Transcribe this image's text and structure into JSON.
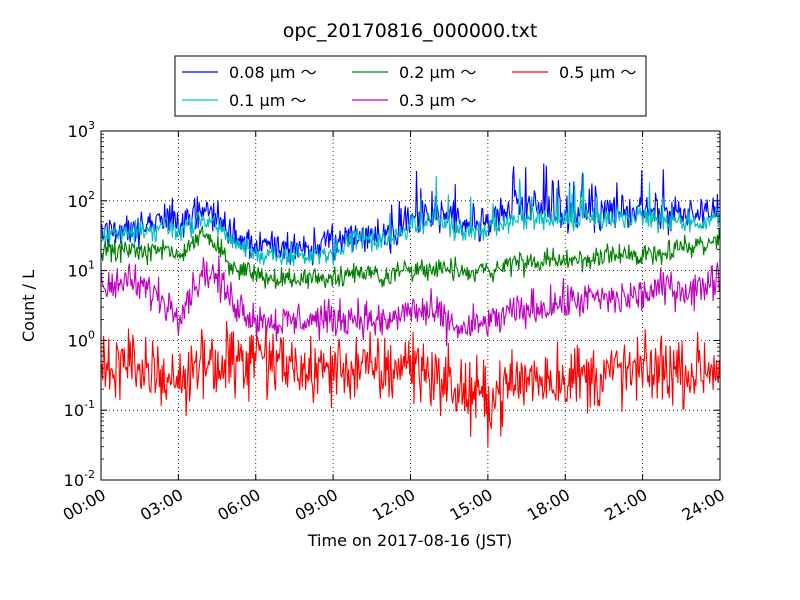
{
  "chart_data": {
    "type": "line",
    "title": "opc_20170816_000000.txt",
    "xlabel": "Time on 2017-08-16 (JST)",
    "ylabel": "Count / L",
    "yscale": "log",
    "ylim": [
      0.01,
      1000
    ],
    "xlim": [
      0,
      24
    ],
    "grid": true,
    "legend_position": "top",
    "xticks": [
      0,
      3,
      6,
      9,
      12,
      15,
      18,
      21,
      24
    ],
    "xtick_labels": [
      "00:00",
      "03:00",
      "06:00",
      "09:00",
      "12:00",
      "15:00",
      "18:00",
      "21:00",
      "24:00"
    ],
    "yticks": [
      {
        "value": 0.01,
        "base": "10",
        "exp": "-2"
      },
      {
        "value": 0.1,
        "base": "10",
        "exp": "-1"
      },
      {
        "value": 1,
        "base": "10",
        "exp": "0"
      },
      {
        "value": 10,
        "base": "10",
        "exp": "1"
      },
      {
        "value": 100,
        "base": "10",
        "exp": "2"
      },
      {
        "value": 1000,
        "base": "10",
        "exp": "3"
      }
    ],
    "x": [
      0,
      1,
      2,
      2.5,
      3,
      3.5,
      4,
      4.5,
      5,
      6,
      7,
      8,
      9,
      10,
      11,
      12,
      13,
      14,
      15,
      16,
      17,
      18,
      19,
      20,
      21,
      22,
      23,
      24
    ],
    "series": [
      {
        "name": "0.08 μm ～",
        "color": "#0000ff",
        "noise": 0.12,
        "values": [
          35,
          42,
          45,
          60,
          50,
          58,
          72,
          60,
          35,
          22,
          21,
          22,
          24,
          33,
          32,
          55,
          70,
          45,
          48,
          85,
          75,
          70,
          68,
          72,
          70,
          70,
          60,
          75
        ]
      },
      {
        "name": "0.1 μm ～",
        "color": "#00bfbf",
        "noise": 0.08,
        "values": [
          30,
          36,
          37,
          45,
          38,
          45,
          55,
          45,
          28,
          17,
          16,
          17,
          19,
          28,
          27,
          45,
          55,
          35,
          40,
          55,
          55,
          55,
          53,
          57,
          55,
          53,
          45,
          55
        ]
      },
      {
        "name": "0.2 μm ～",
        "color": "#008000",
        "noise": 0.08,
        "values": [
          18,
          20,
          17,
          22,
          15,
          25,
          35,
          22,
          12,
          9,
          7.5,
          7.5,
          8,
          10,
          8,
          11,
          11,
          9,
          10,
          13,
          13,
          14,
          15,
          16,
          17,
          20,
          23,
          27
        ]
      },
      {
        "name": "0.3 μm ～",
        "color": "#bf00bf",
        "noise": 0.13,
        "values": [
          6,
          7,
          5,
          3.5,
          2.5,
          5,
          10,
          8,
          4,
          2,
          1.8,
          2,
          2,
          2.2,
          1.7,
          2.8,
          2.3,
          1.4,
          1.8,
          2.5,
          3,
          3.5,
          4,
          3.8,
          4.5,
          6,
          5,
          9
        ]
      },
      {
        "name": "0.5 μm ～",
        "color": "#ff0000",
        "noise": 0.25,
        "values": [
          0.4,
          0.45,
          0.4,
          0.3,
          0.25,
          0.3,
          0.5,
          0.5,
          0.45,
          0.5,
          0.45,
          0.35,
          0.4,
          0.4,
          0.35,
          0.5,
          0.3,
          0.18,
          0.14,
          0.25,
          0.3,
          0.3,
          0.3,
          0.35,
          0.35,
          0.4,
          0.35,
          0.45
        ]
      }
    ]
  }
}
